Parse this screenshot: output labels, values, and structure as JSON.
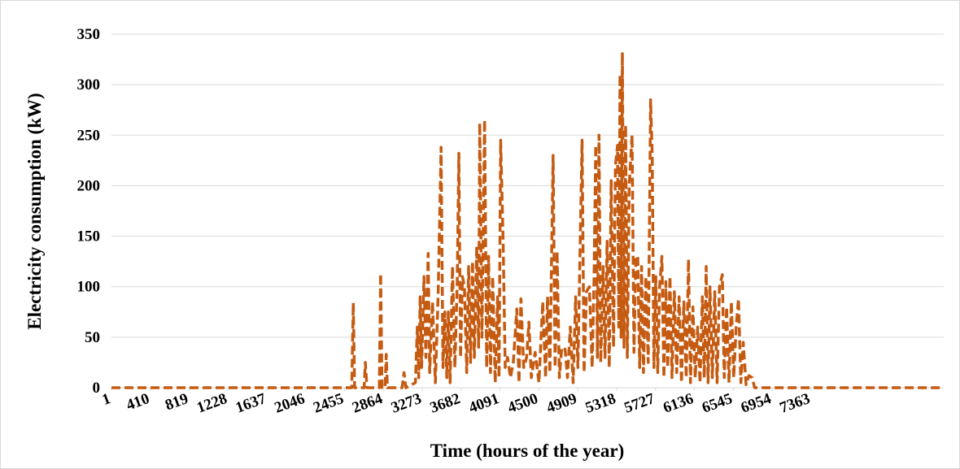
{
  "chart_data": {
    "type": "line",
    "x_label": "Time (hours of the year)",
    "y_label": "Electricity consumption (kW)",
    "color": "#c55a11",
    "dashed": true,
    "grid": true,
    "xlim": [
      1,
      8760
    ],
    "ylim": [
      0,
      350
    ],
    "xticks": [
      1,
      410,
      819,
      1228,
      1637,
      2046,
      2455,
      2864,
      3273,
      3682,
      4091,
      4500,
      4909,
      5318,
      5727,
      6136,
      6545,
      6954,
      7363
    ],
    "yticks": [
      0,
      50,
      100,
      150,
      200,
      250,
      300,
      350
    ],
    "x": [
      1,
      2530,
      2546,
      2560,
      2660,
      2673,
      2690,
      2820,
      2834,
      2848,
      2880,
      2893,
      2905,
      3060,
      3080,
      3100,
      3200,
      3220,
      3235,
      3250,
      3265,
      3290,
      3310,
      3334,
      3350,
      3380,
      3410,
      3440,
      3470,
      3490,
      3510,
      3530,
      3546,
      3565,
      3590,
      3615,
      3640,
      3657,
      3675,
      3695,
      3716,
      3740,
      3760,
      3780,
      3801,
      3820,
      3845,
      3865,
      3877,
      3900,
      3928,
      3950,
      3970,
      3990,
      4013,
      4040,
      4065,
      4080,
      4097,
      4123,
      4145,
      4170,
      4200,
      4230,
      4267,
      4290,
      4310,
      4340,
      4370,
      4394,
      4420,
      4460,
      4500,
      4540,
      4570,
      4590,
      4615,
      4649,
      4670,
      4691,
      4715,
      4740,
      4776,
      4800,
      4830,
      4860,
      4886,
      4910,
      4954,
      4975,
      5000,
      5031,
      5060,
      5080,
      5098,
      5115,
      5132,
      5150,
      5175,
      5195,
      5217,
      5240,
      5260,
      5285,
      5305,
      5327,
      5340,
      5353,
      5365,
      5378,
      5395,
      5412,
      5430,
      5450,
      5480,
      5500,
      5520,
      5540,
      5560,
      5580,
      5600,
      5625,
      5650,
      5675,
      5692,
      5710,
      5730,
      5750,
      5770,
      5794,
      5815,
      5835,
      5855,
      5879,
      5900,
      5925,
      5950,
      5975,
      6000,
      6025,
      6050,
      6074,
      6095,
      6120,
      6145,
      6170,
      6195,
      6220,
      6240,
      6260,
      6280,
      6300,
      6325,
      6350,
      6375,
      6400,
      6430,
      6450,
      6475,
      6500,
      6525,
      6550,
      6575,
      6600,
      6625,
      6650,
      6680,
      6710,
      6744,
      6770,
      6812,
      8760
    ],
    "values": [
      0,
      0,
      84,
      0,
      0,
      25,
      0,
      0,
      113,
      0,
      0,
      33,
      0,
      0,
      15,
      0,
      5,
      60,
      10,
      90,
      20,
      110,
      30,
      133,
      15,
      85,
      5,
      95,
      238,
      20,
      75,
      10,
      75,
      5,
      120,
      20,
      105,
      232,
      30,
      110,
      100,
      15,
      120,
      25,
      125,
      30,
      140,
      40,
      262,
      50,
      265,
      20,
      130,
      15,
      110,
      5,
      90,
      10,
      245,
      145,
      20,
      30,
      10,
      25,
      78,
      5,
      88,
      20,
      30,
      65,
      10,
      35,
      5,
      85,
      10,
      90,
      15,
      230,
      20,
      135,
      10,
      40,
      38,
      10,
      60,
      5,
      90,
      20,
      245,
      15,
      95,
      100,
      20,
      110,
      240,
      30,
      250,
      25,
      120,
      30,
      145,
      20,
      205,
      40,
      220,
      240,
      60,
      310,
      50,
      332,
      40,
      260,
      30,
      200,
      250,
      35,
      130,
      130,
      20,
      120,
      15,
      110,
      25,
      285,
      230,
      20,
      110,
      15,
      100,
      130,
      10,
      105,
      20,
      110,
      10,
      95,
      15,
      90,
      5,
      85,
      10,
      127,
      5,
      80,
      10,
      60,
      5,
      90,
      10,
      120,
      5,
      100,
      10,
      95,
      5,
      100,
      112,
      10,
      80,
      5,
      85,
      10,
      60,
      88,
      5,
      45,
      3,
      12,
      10,
      0,
      0,
      0
    ]
  }
}
